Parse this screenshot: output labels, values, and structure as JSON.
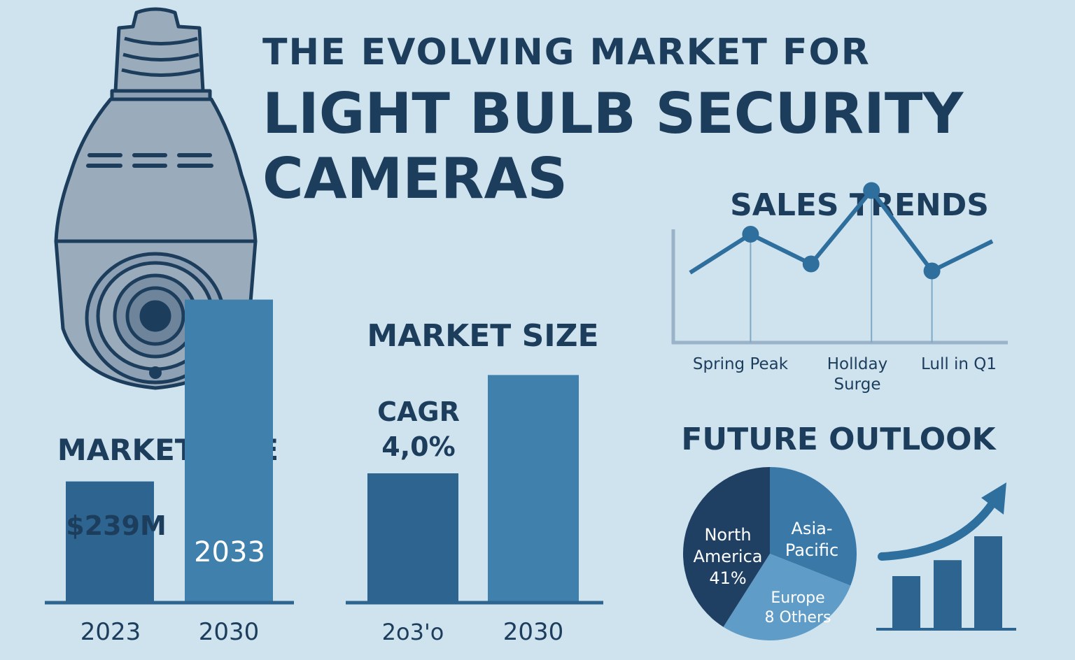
{
  "header": {
    "title_line1": "THE EVOLVING MARKET FOR",
    "title_line2": "LIGHT BULB SECURITY",
    "title_line3": "CAMERAS"
  },
  "colors": {
    "background": "#cfe3ef",
    "navy": "#1d3d5c",
    "dark_blue": "#2d6590",
    "mid_blue": "#3f80ad",
    "light_blue": "#5b98c3",
    "bulb_grey": "#9aabbb"
  },
  "icons": [
    "bulb-camera-icon",
    "trend-arrow-icon"
  ],
  "chart_data": [
    {
      "type": "bar",
      "title": "MARKET SIZE",
      "categories": [
        "2023",
        "2030"
      ],
      "values": [
        0.34,
        0.85
      ],
      "value_labels": [
        "$239M",
        "2033"
      ],
      "ylim": [
        0,
        1
      ]
    },
    {
      "type": "bar",
      "title": "MARKET SIZE",
      "categories": [
        "2o3'o",
        "2030"
      ],
      "values": [
        0.5,
        0.88
      ],
      "annotation_line1": "CAGR",
      "annotation_line2": "4,0%",
      "ylim": [
        0,
        1
      ]
    },
    {
      "type": "line",
      "title": "SALES TRENDS",
      "values": [
        0.4,
        0.62,
        0.45,
        0.87,
        0.41,
        0.58
      ],
      "ylim": [
        0,
        1
      ],
      "annotations": [
        {
          "index": 1,
          "line1": "Spring Peak",
          "line2": ""
        },
        {
          "index": 3,
          "line1": "Hollday",
          "line2": "Surge"
        },
        {
          "index": 4,
          "line1": "Lull in Q1",
          "line2": ""
        }
      ]
    },
    {
      "type": "pie",
      "title": "FUTURE OUTLOOK",
      "slices": [
        {
          "label_line1": "North",
          "label_line2": "America",
          "label_line3": "41%",
          "value": 41,
          "color": "#1f3f63"
        },
        {
          "label_line1": "Asia-",
          "label_line2": "Pacific",
          "label_line3": "",
          "value": 31,
          "color": "#3a78a8"
        },
        {
          "label_line1": "Europe",
          "label_line2": "8 Others",
          "label_line3": "",
          "value": 28,
          "color": "#5f9cc7"
        }
      ]
    },
    {
      "type": "bar",
      "categories": [
        "",
        "",
        ""
      ],
      "values": [
        0.4,
        0.52,
        0.7
      ],
      "ylim": [
        0,
        1
      ]
    }
  ]
}
